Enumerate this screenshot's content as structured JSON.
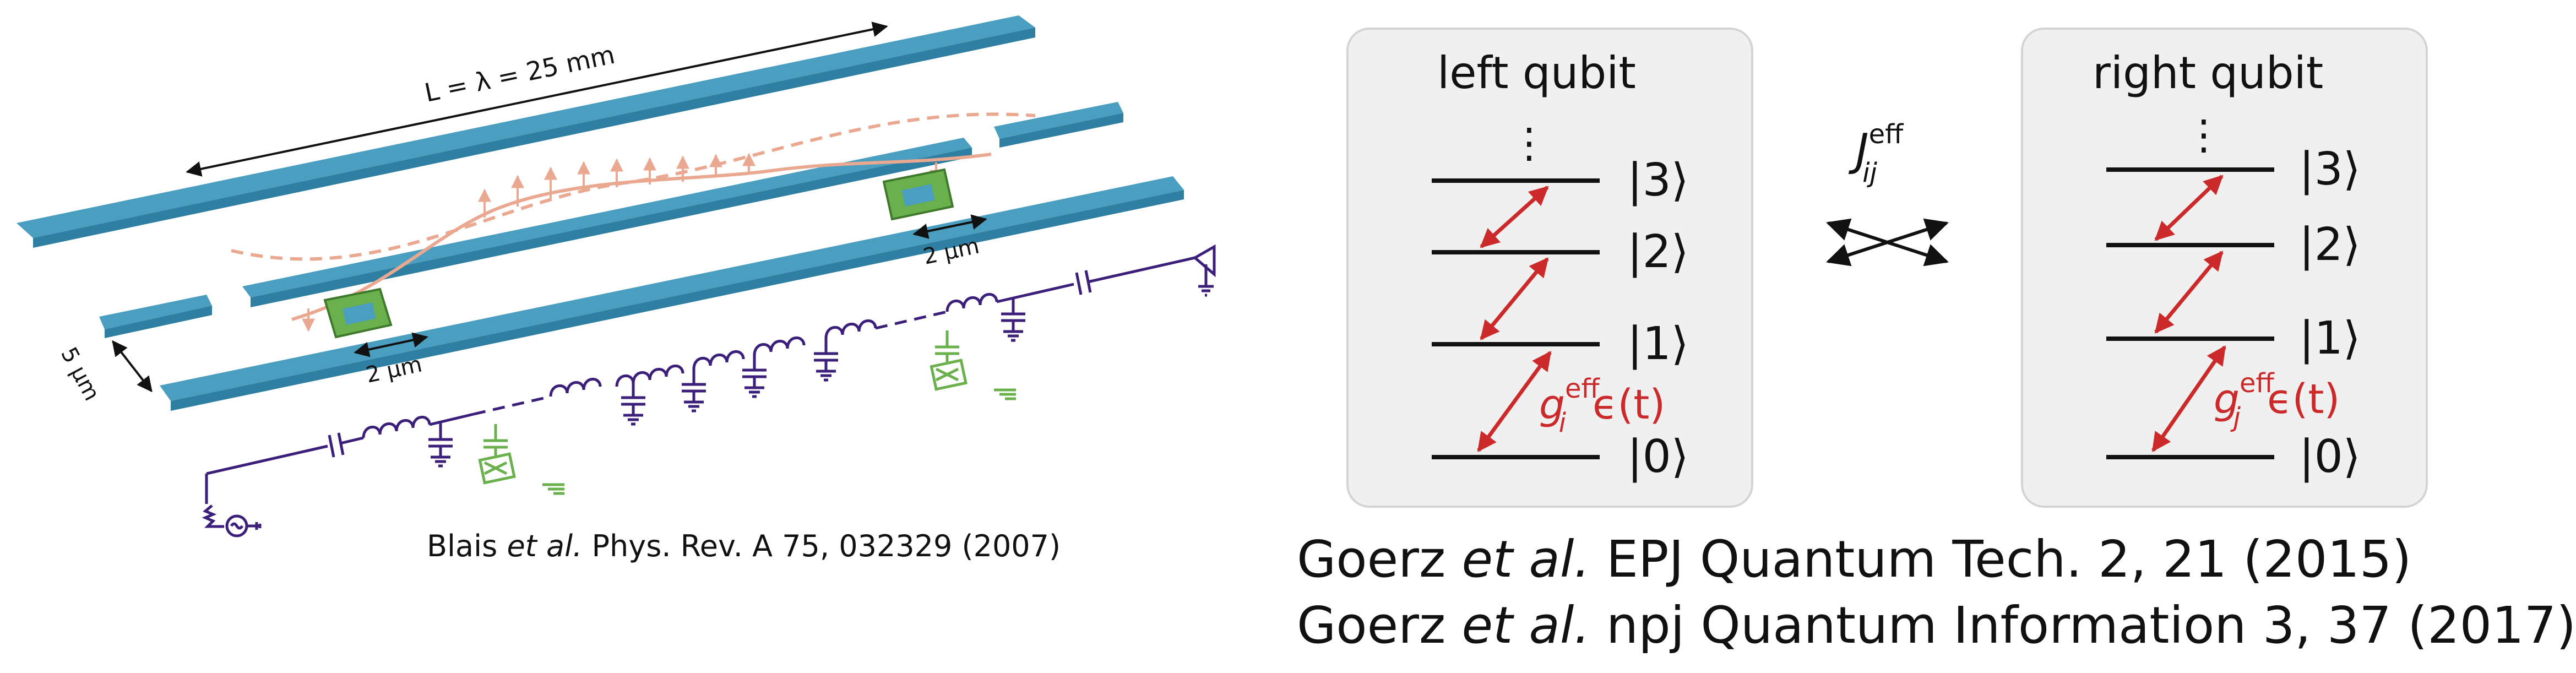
{
  "device": {
    "length_label": "L = λ = 25 mm",
    "junction_gap_left": "2 μm",
    "junction_gap_right": "2 μm",
    "gap_label": "5 μm",
    "colors": {
      "strip": "#4a9ec0",
      "strip_dark": "#2f7fa3",
      "qubit": "#6ab04c",
      "wave": "#eba890",
      "circuit": "#3b1f7a"
    }
  },
  "left_qubit": {
    "title": "left qubit",
    "dots": "⋮",
    "levels": [
      "|0⟩",
      "|1⟩",
      "|2⟩",
      "|3⟩"
    ],
    "coupling": {
      "g": "g",
      "sup": "eff",
      "sub": "i",
      "eps": "ϵ(t)"
    }
  },
  "right_qubit": {
    "title": "right qubit",
    "dots": "⋮",
    "levels": [
      "|0⟩",
      "|1⟩",
      "|2⟩",
      "|3⟩"
    ],
    "coupling": {
      "g": "g",
      "sup": "eff",
      "sub": "j",
      "eps": "ϵ(t)"
    }
  },
  "exchange": {
    "J": "J",
    "sup": "eff",
    "sub": "ij"
  },
  "citations": {
    "blais": {
      "authors": "Blais",
      "etal": "et al.",
      "ref": "Phys. Rev. A 75, 032329 (2007)"
    },
    "goerz_1": {
      "authors": "Goerz",
      "etal": "et al.",
      "ref": "EPJ Quantum Tech. 2, 21 (2015)"
    },
    "goerz_2": {
      "authors": "Goerz",
      "etal": "et al.",
      "ref": "npj Quantum Information 3, 37 (2017)"
    }
  }
}
